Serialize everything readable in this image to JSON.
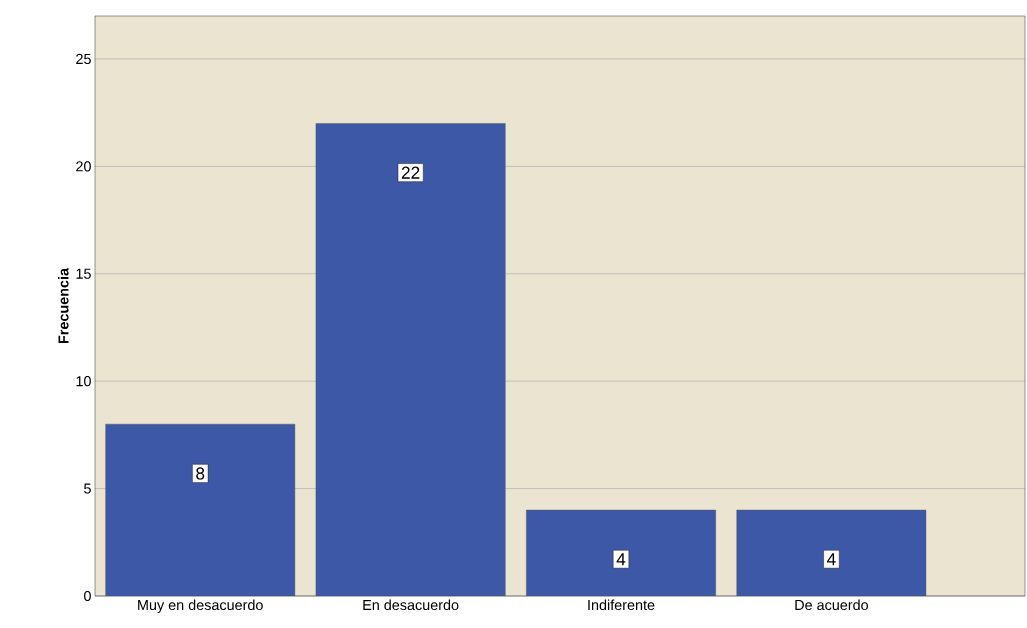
{
  "chart_data": {
    "type": "bar",
    "ylabel": "Frecuencia",
    "categories": [
      "Muy en desacuerdo",
      "En desacuerdo",
      "Indiferente",
      "De acuerdo"
    ],
    "values": [
      8,
      22,
      4,
      4
    ],
    "color": "#3e58a8",
    "data_labels": true,
    "ylim": [
      0,
      27
    ],
    "yticks": [
      0,
      5,
      10,
      15,
      20,
      25
    ],
    "grid": "y"
  }
}
